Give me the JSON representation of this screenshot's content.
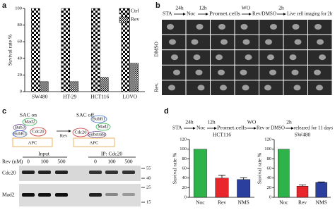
{
  "panel_labels": [
    "a",
    "b",
    "c",
    "d"
  ],
  "chart_data": [
    {
      "type": "bar",
      "ylabel": "Suvival rate %",
      "categories": [
        "SW480",
        "HT-29",
        "HCT116",
        "LOVO"
      ],
      "series": [
        {
          "name": "Ctrl",
          "color": "#000000",
          "pattern": "checker",
          "values": [
            100,
            100,
            100,
            100
          ]
        },
        {
          "name": "Rev",
          "color": "#000000",
          "pattern": "fine-checker",
          "values": [
            12,
            12,
            17,
            34
          ]
        }
      ],
      "ylim": [
        0,
        100
      ],
      "yticks": [
        0,
        20,
        40,
        60,
        80,
        100
      ],
      "legend": "upper right"
    },
    {
      "type": "bar",
      "title": "HCT116",
      "ylabel": "Suvival rate %",
      "categories": [
        "Noc",
        "Rev",
        "NMS"
      ],
      "values": [
        100,
        40,
        37
      ],
      "errors": [
        null,
        6,
        4
      ],
      "colors": [
        "#2db34a",
        "#e8262c",
        "#2a3f9e"
      ],
      "ylim": [
        0,
        120
      ],
      "yticks": [
        0,
        20,
        40,
        60,
        80,
        100,
        120
      ]
    },
    {
      "type": "bar",
      "title": "SW480",
      "ylabel": "Suvival rate %",
      "categories": [
        "Noc",
        "Rev",
        "NMS"
      ],
      "values": [
        100,
        23,
        31
      ],
      "errors": [
        null,
        3,
        1
      ],
      "colors": [
        "#2db34a",
        "#e8262c",
        "#2a3f9e"
      ],
      "ylim": [
        0,
        120
      ],
      "yticks": [
        0,
        20,
        40,
        60,
        80,
        100,
        120
      ]
    }
  ],
  "panel_b": {
    "timeline": [
      "STA",
      "24h",
      "Noc",
      "12h",
      "Promet.cells",
      "WO",
      "Rev/DMSO",
      "2h",
      "Live cell imaging for 2h"
    ],
    "rows": [
      "DMSO",
      "Rev."
    ]
  },
  "panel_c": {
    "states": [
      "SAC on",
      "SAC off"
    ],
    "left_proteins": [
      "Mad2",
      "Bub3",
      "BubR1",
      "Cdc20",
      "APC"
    ],
    "arrow": "Rev",
    "right_proteins": [
      "BubR1",
      "Mad2",
      "Cdc20",
      "Substrate",
      "APC"
    ],
    "groups": [
      "Input",
      "IP: Cdc20"
    ],
    "dose_label": "Rev (nM)",
    "doses": [
      "0",
      "100",
      "500"
    ],
    "blots": [
      "Cdc20",
      "Mad2"
    ],
    "markers": [
      "55",
      "40",
      "25",
      "15"
    ]
  },
  "panel_d": {
    "timeline": [
      "STA",
      "24h",
      "Noc",
      "12h",
      "Promet.cells",
      "WO",
      "Rev or DMSO",
      "2h",
      "released for 11 days"
    ]
  }
}
